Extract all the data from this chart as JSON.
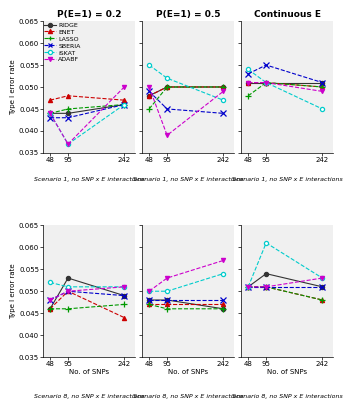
{
  "x": [
    48,
    95,
    242
  ],
  "col_titles": [
    "P(E=1) = 0.2",
    "P(E=1) = 0.5",
    "Continuous E"
  ],
  "row_subtitles_top": [
    "Scenario 1, no SNP x E interactions",
    "Scenario 1, no SNP x E interactions",
    "Scenario 1, no SNP x E interactions"
  ],
  "row_subtitles_bot": [
    "Scenario 8, no SNP x E interactions",
    "Scenario 8, no SNP x E interactions",
    "Scenario 8, no SNP x E interactions"
  ],
  "ylabel_top": "Type I error rate",
  "ylabel_bot": "Type I error rate",
  "xlabel": "No. of SNPs",
  "ylim": [
    0.035,
    0.065
  ],
  "yticks": [
    0.035,
    0.04,
    0.045,
    0.05,
    0.055,
    0.06,
    0.065
  ],
  "methods": [
    "RIDGE",
    "ENET",
    "LASSO",
    "SBERIA",
    "iSKAT",
    "ADABF"
  ],
  "colors": [
    "#333333",
    "#cc0000",
    "#009900",
    "#0000cc",
    "#00cccc",
    "#cc00cc"
  ],
  "markers": [
    "o",
    "^",
    "+",
    "x",
    "o",
    "v"
  ],
  "linestyles": [
    "-",
    "--",
    "--",
    "--",
    "--",
    "--"
  ],
  "top_data": [
    {
      "RIDGE": [
        0.044,
        0.044,
        0.046
      ],
      "ENET": [
        0.047,
        0.048,
        0.047
      ],
      "LASSO": [
        0.044,
        0.045,
        0.046
      ],
      "SBERIA": [
        0.043,
        0.043,
        0.046
      ],
      "iSKAT": [
        0.044,
        0.037,
        0.046
      ],
      "ADABF": [
        0.044,
        0.037,
        0.05
      ]
    },
    {
      "RIDGE": [
        0.048,
        0.05,
        0.05
      ],
      "ENET": [
        0.048,
        0.05,
        0.05
      ],
      "LASSO": [
        0.045,
        0.05,
        0.05
      ],
      "SBERIA": [
        0.049,
        0.045,
        0.044
      ],
      "iSKAT": [
        0.055,
        0.052,
        0.047
      ],
      "ADABF": [
        0.05,
        0.039,
        0.049
      ]
    },
    {
      "RIDGE": [
        0.051,
        0.051,
        0.051
      ],
      "ENET": [
        0.051,
        0.051,
        0.05
      ],
      "LASSO": [
        0.048,
        0.051,
        0.05
      ],
      "SBERIA": [
        0.053,
        0.055,
        0.051
      ],
      "iSKAT": [
        0.054,
        0.051,
        0.045
      ],
      "ADABF": [
        0.051,
        0.051,
        0.049
      ]
    }
  ],
  "bot_data": [
    {
      "RIDGE": [
        0.046,
        0.053,
        0.049
      ],
      "ENET": [
        0.046,
        0.05,
        0.044
      ],
      "LASSO": [
        0.046,
        0.046,
        0.047
      ],
      "SBERIA": [
        0.048,
        0.05,
        0.049
      ],
      "iSKAT": [
        0.052,
        0.051,
        0.051
      ],
      "ADABF": [
        0.048,
        0.05,
        0.051
      ]
    },
    {
      "RIDGE": [
        0.048,
        0.048,
        0.046
      ],
      "ENET": [
        0.047,
        0.047,
        0.047
      ],
      "LASSO": [
        0.047,
        0.046,
        0.046
      ],
      "SBERIA": [
        0.048,
        0.048,
        0.048
      ],
      "iSKAT": [
        0.05,
        0.05,
        0.054
      ],
      "ADABF": [
        0.05,
        0.053,
        0.057
      ]
    },
    {
      "RIDGE": [
        0.051,
        0.054,
        0.051
      ],
      "ENET": [
        0.051,
        0.051,
        0.048
      ],
      "LASSO": [
        0.051,
        0.051,
        0.048
      ],
      "SBERIA": [
        0.051,
        0.051,
        0.051
      ],
      "iSKAT": [
        0.051,
        0.061,
        0.053
      ],
      "ADABF": [
        0.051,
        0.051,
        0.053
      ]
    }
  ],
  "bg_color": "#f5f5f5"
}
